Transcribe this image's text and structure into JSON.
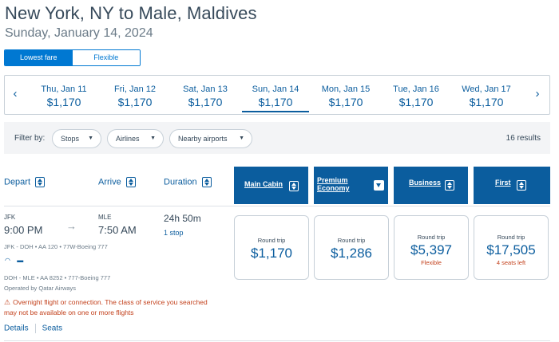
{
  "header": {
    "route": "New York, NY to Male, Maldives",
    "date": "Sunday, January 14, 2024"
  },
  "fare_toggle": {
    "options": [
      "Lowest fare",
      "Flexible"
    ],
    "selected": "Lowest fare"
  },
  "date_strip": {
    "prev_icon": "chevron-left-icon",
    "next_icon": "chevron-right-icon",
    "dates": [
      {
        "label": "Thu, Jan 11",
        "price": "$1,170"
      },
      {
        "label": "Fri, Jan 12",
        "price": "$1,170"
      },
      {
        "label": "Sat, Jan 13",
        "price": "$1,170"
      },
      {
        "label": "Sun, Jan 14",
        "price": "$1,170",
        "selected": true
      },
      {
        "label": "Mon, Jan 15",
        "price": "$1,170"
      },
      {
        "label": "Tue, Jan 16",
        "price": "$1,170"
      },
      {
        "label": "Wed, Jan 17",
        "price": "$1,170"
      }
    ]
  },
  "filters": {
    "label": "Filter by:",
    "pills": [
      "Stops",
      "Airlines",
      "Nearby airports"
    ],
    "results": "16 results"
  },
  "columns": {
    "depart": "Depart",
    "arrive": "Arrive",
    "duration": "Duration"
  },
  "cabins": [
    {
      "label": "Main Cabin"
    },
    {
      "label_line1": "Premium",
      "label_line2": "Economy"
    },
    {
      "label": "Business"
    },
    {
      "label": "First"
    }
  ],
  "flight": {
    "depart_airport": "JFK",
    "depart_time": "9:00 PM",
    "arrive_airport": "MLE",
    "arrive_time": "7:50 AM",
    "duration": "24h 50m",
    "stops": "1 stop",
    "segment1": "JFK - DOH • AA 120 • 77W-Boeing 777",
    "segment2": "DOH - MLE • AA 8252 • 777-Boeing 777",
    "amenities": [
      "wifi-icon",
      "power-icon"
    ],
    "operated_by": "Operated by Qatar Airways",
    "warning_line1": "Overnight flight or connection. The class of service you searched",
    "warning_line2": "may not be available on one or more flights",
    "links": [
      "Details",
      "Seats"
    ],
    "fares": [
      {
        "type": "Round trip",
        "price": "$1,170",
        "note": ""
      },
      {
        "type": "Round trip",
        "price": "$1,286",
        "note": ""
      },
      {
        "type": "Round trip",
        "price": "$5,397",
        "note": "Flexible"
      },
      {
        "type": "Round trip",
        "price": "$17,505",
        "note": "4 seats left"
      }
    ]
  },
  "colors": {
    "brand_blue": "#0b5d9e",
    "accent_blue": "#0078d2",
    "warning": "#c3411c"
  }
}
